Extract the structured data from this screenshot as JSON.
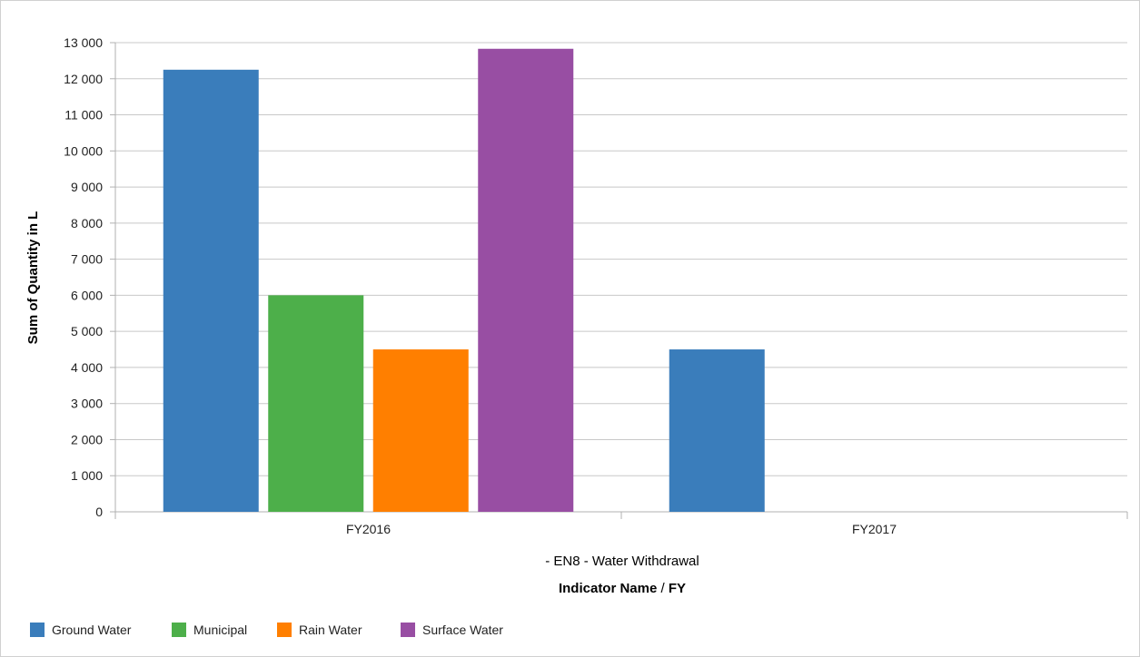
{
  "chart_data": {
    "type": "bar",
    "categories": [
      "FY2016",
      "FY2017"
    ],
    "series": [
      {
        "name": "Ground Water",
        "values": [
          12250,
          4500
        ],
        "color": "#3a7dbb"
      },
      {
        "name": "Municipal",
        "values": [
          6000,
          null
        ],
        "color": "#4daf4a"
      },
      {
        "name": "Rain Water",
        "values": [
          4500,
          null
        ],
        "color": "#ff7f00"
      },
      {
        "name": "Surface Water",
        "values": [
          12830,
          null
        ],
        "color": "#984ea3"
      }
    ],
    "ylabel": "Sum of Quantity in L",
    "xlabel_top": "- EN8 - Water Withdrawal",
    "xlabel_bold_left": "Indicator Name",
    "xlabel_sep": " / ",
    "xlabel_bold_right": "FY",
    "ylim": [
      0,
      13000
    ],
    "yticks": [
      0,
      1000,
      2000,
      3000,
      4000,
      5000,
      6000,
      7000,
      8000,
      9000,
      10000,
      11000,
      12000,
      13000
    ],
    "ytick_labels": [
      "0",
      "1 000",
      "2 000",
      "3 000",
      "4 000",
      "5 000",
      "6 000",
      "7 000",
      "8 000",
      "9 000",
      "10 000",
      "11 000",
      "12 000",
      "13 000"
    ],
    "grid": true,
    "legend_position": "bottom-left",
    "gridline_color": "#c8c8c8",
    "axis_color": "#b0b0b0"
  }
}
